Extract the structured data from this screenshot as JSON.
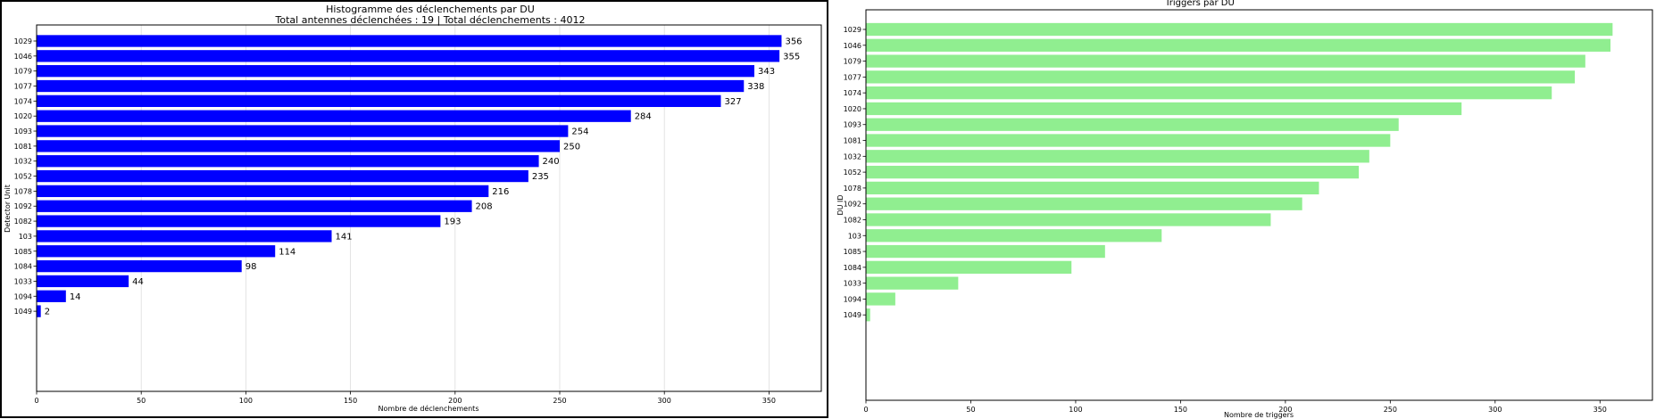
{
  "chart_data": [
    {
      "type": "bar",
      "orientation": "horizontal",
      "title": "Histogramme des déclenchements par DU",
      "subtitle": "Total antennes déclenchées : 19 | Total déclenchements : 4012",
      "xlabel": "Nombre de déclenchements",
      "ylabel": "Detector Unit",
      "xlim": [
        0,
        375
      ],
      "xticks": [
        0,
        50,
        100,
        150,
        200,
        250,
        300,
        350
      ],
      "grid": "vertical",
      "bar_color": "#0000ff",
      "show_value_labels": true,
      "categories": [
        "1029",
        "1046",
        "1079",
        "1077",
        "1074",
        "1020",
        "1093",
        "1081",
        "1032",
        "1052",
        "1078",
        "1092",
        "1082",
        "103",
        "1085",
        "1084",
        "1033",
        "1094",
        "1049"
      ],
      "values": [
        356,
        355,
        343,
        338,
        327,
        284,
        254,
        250,
        240,
        235,
        216,
        208,
        193,
        141,
        114,
        98,
        44,
        14,
        2
      ]
    },
    {
      "type": "bar",
      "orientation": "horizontal",
      "title": "Triggers par DU",
      "xlabel": "Nombre de triggers",
      "ylabel": "DU ID",
      "xlim": [
        0,
        375
      ],
      "xticks": [
        0,
        50,
        100,
        150,
        200,
        250,
        300,
        350
      ],
      "grid": "none",
      "bar_color": "#90ee90",
      "show_value_labels": false,
      "categories": [
        "1029",
        "1046",
        "1079",
        "1077",
        "1074",
        "1020",
        "1093",
        "1081",
        "1032",
        "1052",
        "1078",
        "1092",
        "1082",
        "103",
        "1085",
        "1084",
        "1033",
        "1094",
        "1049"
      ],
      "values": [
        356,
        355,
        343,
        338,
        327,
        284,
        254,
        250,
        240,
        235,
        216,
        208,
        193,
        141,
        114,
        98,
        44,
        14,
        2
      ]
    }
  ]
}
